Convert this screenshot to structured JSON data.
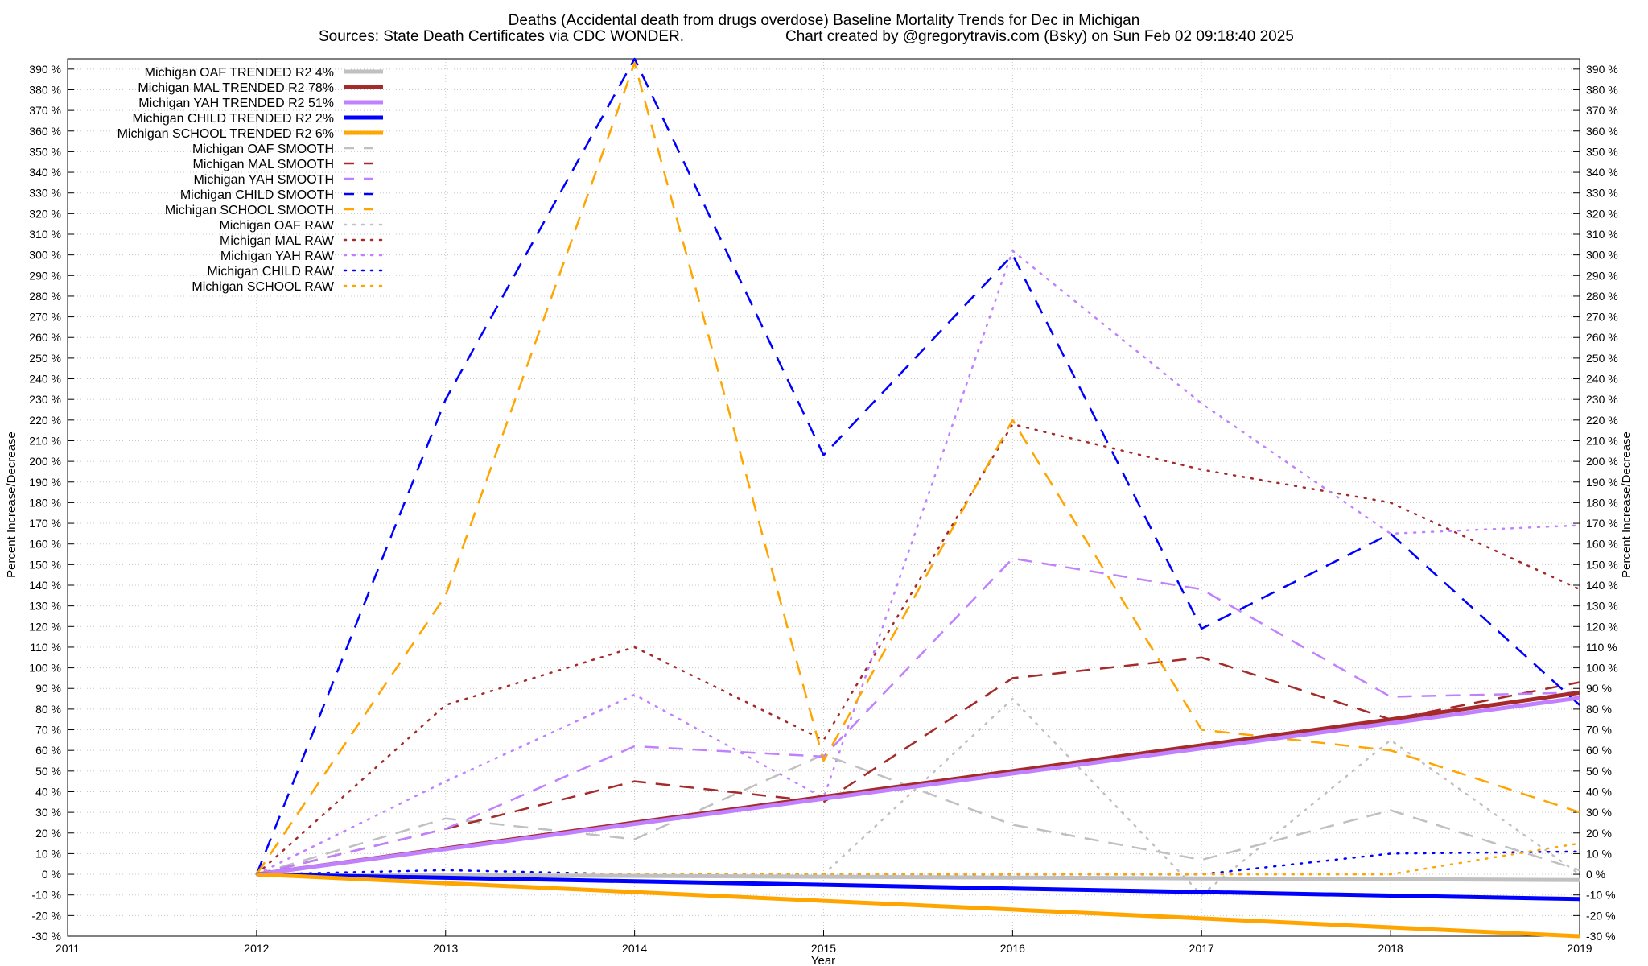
{
  "chart_data": {
    "type": "line",
    "title": "Deaths (Accidental death from drugs overdose)  Baseline Mortality Trends for Dec in Michigan",
    "subtitle_left": "Sources: State Death Certificates via CDC WONDER.",
    "subtitle_right": "Chart created by @gregorytravis.com (Bsky) on Sun Feb 02 09:18:40 2025",
    "xlabel": "Year",
    "ylabel": "Percent Increase/Decrease",
    "xlim": [
      2011,
      2019
    ],
    "ylim": [
      -30,
      395
    ],
    "x_ticks": [
      "2011",
      "2012",
      "2013",
      "2014",
      "2015",
      "2016",
      "2017",
      "2018",
      "2019"
    ],
    "y_ticks": [
      "-30 %",
      "-20 %",
      "-10 %",
      "0 %",
      "10 %",
      "20 %",
      "30 %",
      "40 %",
      "50 %",
      "60 %",
      "70 %",
      "80 %",
      "90 %",
      "100 %",
      "110 %",
      "120 %",
      "130 %",
      "140 %",
      "150 %",
      "160 %",
      "170 %",
      "180 %",
      "190 %",
      "200 %",
      "210 %",
      "220 %",
      "230 %",
      "240 %",
      "250 %",
      "260 %",
      "270 %",
      "280 %",
      "290 %",
      "300 %",
      "310 %",
      "320 %",
      "330 %",
      "340 %",
      "350 %",
      "360 %",
      "370 %",
      "380 %",
      "390 %"
    ],
    "grid": true,
    "legend_position": "top-left",
    "x": [
      2012,
      2013,
      2014,
      2015,
      2016,
      2017,
      2018,
      2019
    ],
    "series": [
      {
        "name": "Michigan OAF TRENDED R2  4%",
        "style": "trend",
        "color": "#c0c0c0",
        "values": [
          0,
          -0.4,
          -0.8,
          -1.2,
          -1.6,
          -2.0,
          -2.4,
          -2.8
        ]
      },
      {
        "name": "Michigan MAL TRENDED R2  78%",
        "style": "trend",
        "color": "#a52a2a",
        "values": [
          0,
          12.5,
          25,
          37.5,
          50,
          62.5,
          75,
          88
        ]
      },
      {
        "name": "Michigan YAH TRENDED R2  51%",
        "style": "trend",
        "color": "#c080ff",
        "values": [
          0,
          12.2,
          24.4,
          36.6,
          48.8,
          61,
          73.2,
          85.5
        ]
      },
      {
        "name": "Michigan CHILD TRENDED R2  2%",
        "style": "trend",
        "color": "#0000ff",
        "values": [
          0,
          -1.7,
          -3.4,
          -5.1,
          -6.9,
          -8.6,
          -10.3,
          -12
        ]
      },
      {
        "name": "Michigan SCHOOL TRENDED R2  6%",
        "style": "trend",
        "color": "#ffa500",
        "values": [
          0,
          -4.3,
          -8.6,
          -12.9,
          -17.1,
          -21.4,
          -25.7,
          -30
        ]
      },
      {
        "name": "Michigan OAF SMOOTH",
        "style": "smooth",
        "color": "#c0c0c0",
        "values": [
          0,
          27,
          17,
          58,
          24,
          7,
          31,
          2
        ]
      },
      {
        "name": "Michigan MAL SMOOTH",
        "style": "smooth",
        "color": "#a52a2a",
        "values": [
          0,
          22,
          45,
          35,
          95,
          105,
          75,
          93
        ]
      },
      {
        "name": "Michigan YAH SMOOTH",
        "style": "smooth",
        "color": "#c080ff",
        "values": [
          0,
          22,
          62,
          57,
          153,
          138,
          86,
          88
        ]
      },
      {
        "name": "Michigan CHILD SMOOTH",
        "style": "smooth",
        "color": "#0000ff",
        "values": [
          0,
          230,
          395,
          203,
          300,
          119,
          165,
          82
        ]
      },
      {
        "name": "Michigan SCHOOL SMOOTH",
        "style": "smooth",
        "color": "#ffa500",
        "values": [
          0,
          135,
          393,
          55,
          220,
          70,
          60,
          30
        ]
      },
      {
        "name": "Michigan OAF RAW",
        "style": "raw",
        "color": "#c0c0c0",
        "values": [
          0,
          0,
          0,
          0,
          85,
          -10,
          65,
          0
        ]
      },
      {
        "name": "Michigan MAL RAW",
        "style": "raw",
        "color": "#a52a2a",
        "values": [
          0,
          82,
          110,
          65,
          218,
          196,
          180,
          138
        ]
      },
      {
        "name": "Michigan YAH RAW",
        "style": "raw",
        "color": "#c080ff",
        "values": [
          0,
          45,
          87,
          37,
          302,
          228,
          165,
          169
        ]
      },
      {
        "name": "Michigan CHILD RAW",
        "style": "raw",
        "color": "#0000ff",
        "values": [
          0,
          2,
          0,
          0,
          0,
          0,
          10,
          11
        ]
      },
      {
        "name": "Michigan SCHOOL RAW",
        "style": "raw",
        "color": "#ffa500",
        "values": [
          0,
          0,
          0,
          0,
          0,
          0,
          0,
          15
        ]
      }
    ]
  }
}
